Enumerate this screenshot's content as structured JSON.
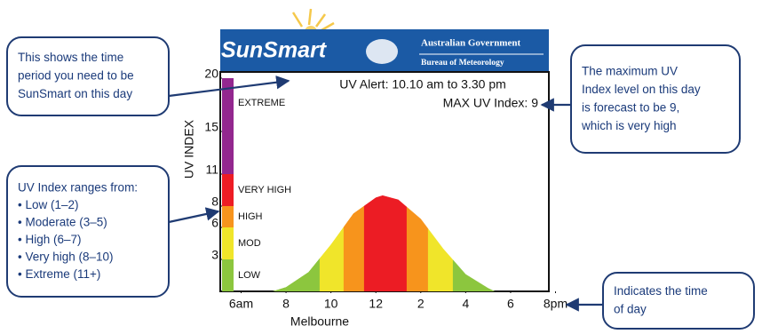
{
  "chart_data": {
    "type": "area",
    "header": {
      "logo": "SunSmart",
      "line1": "Australian Government",
      "line2": "Bureau of Meteorology"
    },
    "alert": "UV Alert:  10.10 am  to  3.30 pm",
    "max_label": "MAX UV Index: 9",
    "y_label": "UV INDEX",
    "x_label": "Melbourne",
    "x": [
      7.4,
      8,
      9,
      10,
      11,
      12,
      12.3,
      13,
      14,
      15,
      16,
      17,
      17.3
    ],
    "values": [
      0,
      0.4,
      1.8,
      4.4,
      7.3,
      8.8,
      9,
      8.6,
      6.8,
      4,
      1.6,
      0.3,
      0
    ],
    "xlim": [
      5.15,
      19.6
    ],
    "ylim": [
      0,
      20
    ],
    "xticks": [
      {
        "value": 6,
        "label": "6am"
      },
      8,
      10,
      12,
      {
        "value": 14,
        "label": "2"
      },
      {
        "value": 16,
        "label": "4"
      },
      {
        "value": 18,
        "label": "6"
      },
      {
        "value": 20,
        "label": "8pm"
      }
    ],
    "yticks": [
      3,
      6,
      8,
      11,
      15,
      20
    ],
    "bands": [
      {
        "name": "LOW",
        "color": "#8cc63e",
        "range": [
          0,
          3
        ]
      },
      {
        "name": "MOD",
        "color": "#f0e52a",
        "range": [
          3,
          6
        ]
      },
      {
        "name": "HIGH",
        "color": "#f7941d",
        "range": [
          6,
          8
        ]
      },
      {
        "name": "VERY HIGH",
        "color": "#ed1c24",
        "range": [
          8,
          11
        ]
      },
      {
        "name": "EXTREME",
        "color": "#93278f",
        "range": [
          11,
          20
        ]
      }
    ],
    "callouts": [
      {
        "lines": [
          "This shows the time",
          "period you need to be",
          "SunSmart on this day"
        ]
      },
      {
        "lines": [
          "UV Index ranges from:",
          "• Low (1–2)",
          "• Moderate (3–5)",
          "• High (6–7)",
          "• Very high (8–10)",
          "• Extreme (11+)"
        ]
      },
      {
        "lines": [
          "The maximum UV",
          "Index level on this day",
          "is forecast to be 9,",
          "which is very high"
        ]
      },
      {
        "lines": [
          "Indicates the time",
          "of day"
        ]
      }
    ]
  }
}
